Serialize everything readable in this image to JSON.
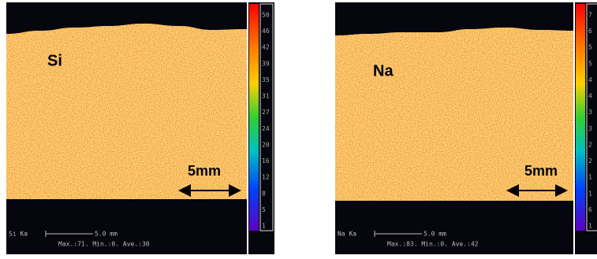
{
  "panels": [
    {
      "element": "Si",
      "scale_bar": "5mm",
      "caption_element": "Si Ka",
      "caption_scale": "5.0 mm",
      "caption_stats": "Max.:71. Min.:0. Ave.:30",
      "colorbar_labels": [
        "50",
        "46",
        "42",
        "39",
        "35",
        "31",
        "27",
        "24",
        "20",
        "16",
        "12",
        "8",
        "5",
        "1"
      ]
    },
    {
      "element": "Na",
      "scale_bar": "5mm",
      "caption_element": "Na Ka",
      "caption_scale": "5.0 mm",
      "caption_stats": "Max.:83. Min.:0. Ave.:42",
      "colorbar_labels": [
        "7",
        "6",
        "5",
        "5",
        "4",
        "4",
        "3",
        "3",
        "2",
        "2",
        "1",
        "1",
        "6",
        "1"
      ]
    }
  ]
}
